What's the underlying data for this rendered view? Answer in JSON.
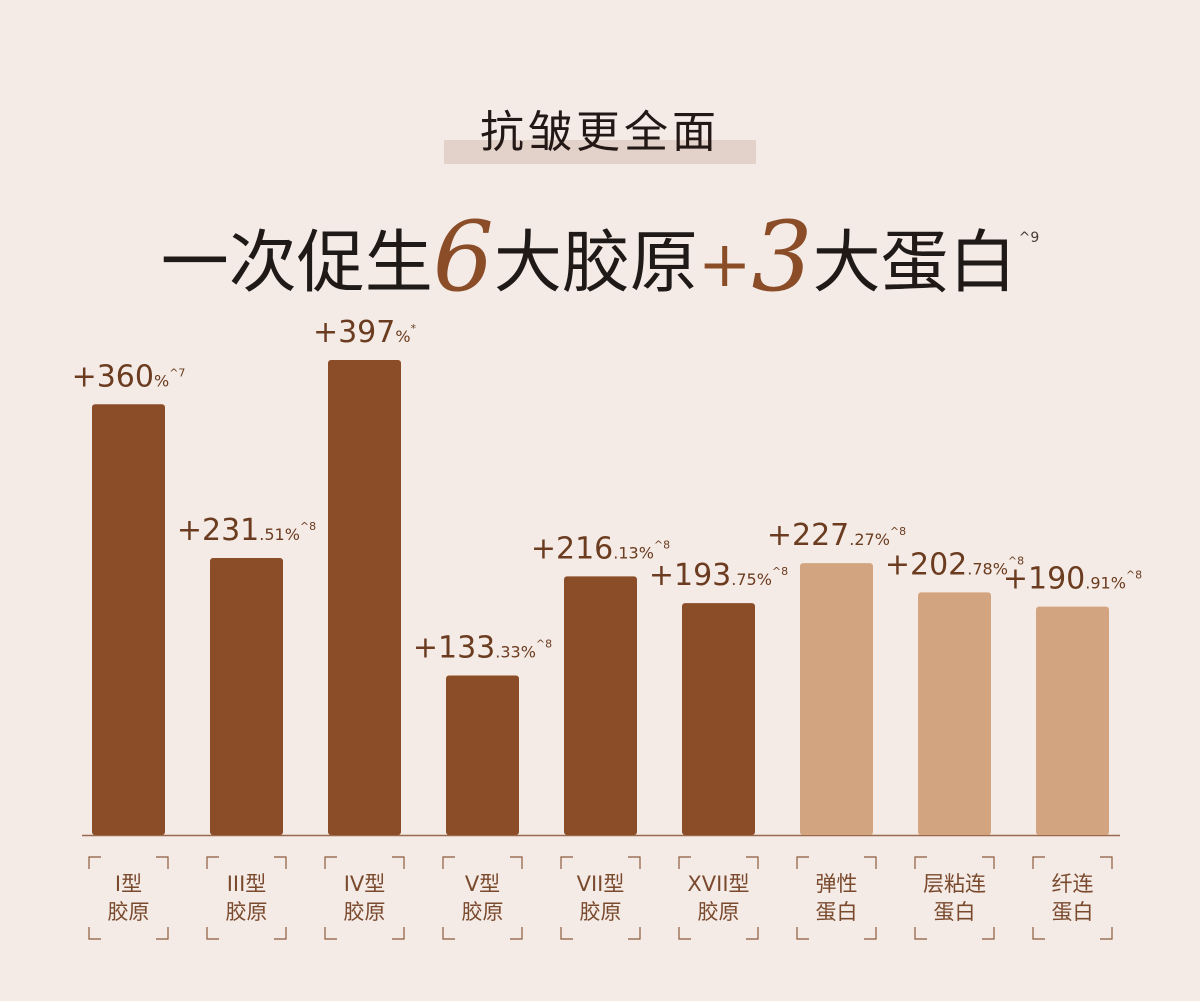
{
  "header": {
    "subtitle": "抗皱更全面",
    "headline_pre": "一次促生",
    "headline_num1": "6",
    "headline_mid": "大胶原",
    "headline_plus": "+",
    "headline_num2": "3",
    "headline_post": "大蛋白",
    "headline_note": "^9"
  },
  "colors": {
    "background": "#f4ebe6",
    "collagen_bar": "#8a4d28",
    "protein_bar": "#d2a580",
    "accent_text": "#8a4d28",
    "label_frame": "#8c5a3c"
  },
  "chart_data": {
    "type": "bar",
    "ylim": [
      0,
      420
    ],
    "categories": [
      [
        "I型",
        "胶原"
      ],
      [
        "III型",
        "胶原"
      ],
      [
        "IV型",
        "胶原"
      ],
      [
        "V型",
        "胶原"
      ],
      [
        "VII型",
        "胶原"
      ],
      [
        "XVII型",
        "胶原"
      ],
      [
        "弹性",
        "蛋白"
      ],
      [
        "层粘连",
        "蛋白"
      ],
      [
        "纤连",
        "蛋白"
      ]
    ],
    "values": [
      360,
      231.51,
      397,
      133.33,
      216.13,
      193.75,
      227.27,
      202.78,
      190.91
    ],
    "group": [
      "collagen",
      "collagen",
      "collagen",
      "collagen",
      "collagen",
      "collagen",
      "protein",
      "protein",
      "protein"
    ],
    "labels": [
      {
        "main": "+360",
        "decimal": "%",
        "note": "^7"
      },
      {
        "main": "+231",
        "decimal": ".51%",
        "note": "^8"
      },
      {
        "main": "+397",
        "decimal": "%",
        "note": "*"
      },
      {
        "main": "+133",
        "decimal": ".33%",
        "note": "^8"
      },
      {
        "main": "+216",
        "decimal": ".13%",
        "note": "^8"
      },
      {
        "main": "+193",
        "decimal": ".75%",
        "note": "^8"
      },
      {
        "main": "+227",
        "decimal": ".27%",
        "note": "^8"
      },
      {
        "main": "+202",
        "decimal": ".78%",
        "note": "^8"
      },
      {
        "main": "+190",
        "decimal": ".91%",
        "note": "^8"
      }
    ]
  }
}
